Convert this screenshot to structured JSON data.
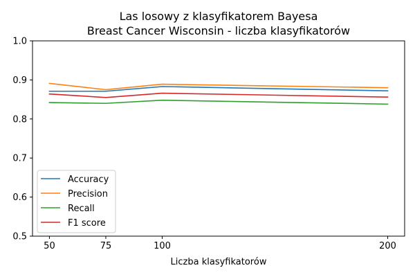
{
  "chart_data": {
    "type": "line",
    "title": "Las losowy z klasyfikatorem Bayesa",
    "subtitle": "Breast Cancer Wisconsin - liczba klasyfikatorów",
    "xlabel": "Liczba klasyfikatorów",
    "ylabel": "",
    "x": [
      50,
      75,
      100,
      200
    ],
    "x_ticks": [
      "50",
      "75",
      "100",
      "200"
    ],
    "y_ticks": [
      "0.5",
      "0.6",
      "0.7",
      "0.8",
      "0.9",
      "1.0"
    ],
    "xlim": [
      42.5,
      207.5
    ],
    "ylim": [
      0.5,
      1.0
    ],
    "grid": false,
    "legend_position": "lower-left",
    "series": [
      {
        "name": "Accuracy",
        "color": "#1f77b4",
        "values": [
          0.871,
          0.871,
          0.883,
          0.872
        ]
      },
      {
        "name": "Precision",
        "color": "#ff7f0e",
        "values": [
          0.891,
          0.875,
          0.889,
          0.88
        ]
      },
      {
        "name": "Recall",
        "color": "#2ca02c",
        "values": [
          0.842,
          0.84,
          0.848,
          0.838
        ]
      },
      {
        "name": "F1 score",
        "color": "#d62728",
        "values": [
          0.864,
          0.855,
          0.866,
          0.856
        ]
      }
    ]
  }
}
